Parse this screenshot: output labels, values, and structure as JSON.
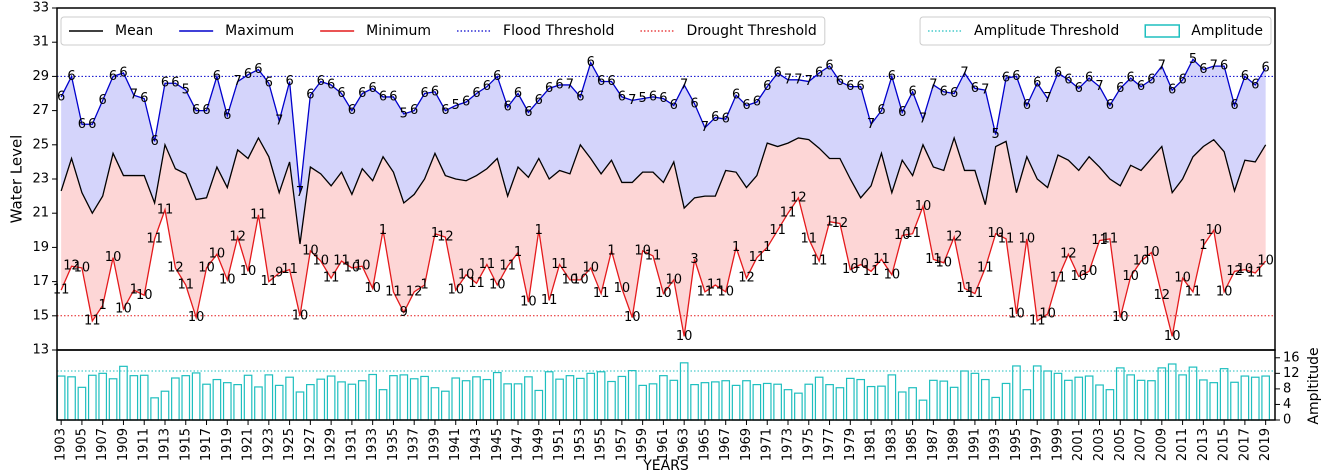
{
  "chart_data": [
    {
      "type": "line",
      "ylabel": "Water Level",
      "x": [
        1903,
        1904,
        1905,
        1906,
        1907,
        1908,
        1909,
        1910,
        1911,
        1912,
        1913,
        1914,
        1915,
        1916,
        1917,
        1918,
        1919,
        1920,
        1921,
        1922,
        1923,
        1924,
        1925,
        1926,
        1927,
        1928,
        1929,
        1930,
        1931,
        1932,
        1933,
        1934,
        1935,
        1936,
        1937,
        1938,
        1939,
        1940,
        1941,
        1942,
        1943,
        1944,
        1945,
        1946,
        1947,
        1948,
        1949,
        1950,
        1951,
        1952,
        1953,
        1954,
        1955,
        1956,
        1957,
        1958,
        1959,
        1960,
        1961,
        1962,
        1963,
        1964,
        1965,
        1966,
        1967,
        1968,
        1969,
        1970,
        1971,
        1972,
        1973,
        1974,
        1975,
        1976,
        1977,
        1978,
        1979,
        1980,
        1981,
        1982,
        1983,
        1984,
        1985,
        1986,
        1987,
        1988,
        1989,
        1990,
        1991,
        1992,
        1993,
        1994,
        1995,
        1996,
        1997,
        1998,
        1999,
        2000,
        2001,
        2002,
        2003,
        2004,
        2005,
        2006,
        2007,
        2008,
        2009,
        2010,
        2011,
        2012,
        2013,
        2014,
        2015,
        2016,
        2017,
        2018,
        2019
      ],
      "series": [
        {
          "name": "Mean",
          "color": "#000000",
          "values": [
            22.3,
            24.2,
            22.2,
            21.0,
            22.0,
            24.5,
            23.2,
            23.2,
            23.2,
            21.6,
            25.0,
            23.6,
            23.3,
            21.8,
            21.9,
            23.7,
            22.5,
            24.7,
            24.2,
            25.4,
            24.3,
            22.2,
            24.0,
            19.2,
            23.7,
            23.3,
            22.6,
            23.4,
            22.1,
            23.6,
            22.9,
            24.3,
            23.4,
            21.6,
            22.1,
            23.0,
            24.5,
            23.2,
            23.0,
            22.9,
            23.2,
            23.6,
            24.2,
            22.0,
            23.7,
            23.1,
            24.2,
            23.0,
            23.5,
            23.3,
            25.0,
            24.2,
            23.3,
            24.1,
            22.8,
            22.8,
            23.4,
            23.4,
            22.8,
            24.0,
            21.3,
            21.9,
            22.0,
            22.0,
            23.5,
            23.4,
            22.5,
            23.2,
            25.1,
            24.9,
            25.1,
            25.4,
            25.3,
            24.8,
            24.2,
            24.2,
            23.0,
            21.9,
            22.6,
            24.5,
            22.2,
            24.1,
            23.2,
            25.0,
            23.7,
            23.5,
            25.4,
            23.5,
            23.5,
            21.5,
            24.9,
            25.2,
            22.2,
            24.3,
            23.0,
            22.5,
            24.4,
            24.1,
            23.5,
            24.3,
            23.7,
            23.0,
            22.6,
            23.8,
            23.5,
            24.2,
            24.9,
            22.2,
            23.0,
            24.3,
            24.9,
            25.3,
            24.6,
            22.3,
            24.1,
            24.0,
            25.0
          ]
        },
        {
          "name": "Maximum",
          "color": "#0000cc",
          "fill": "#d4d4fb",
          "values": [
            27.8,
            29.0,
            26.2,
            26.2,
            27.6,
            29.0,
            29.2,
            27.9,
            27.7,
            25.2,
            28.6,
            28.6,
            28.2,
            27.0,
            27.0,
            29.0,
            26.7,
            28.7,
            29.1,
            29.4,
            28.6,
            26.4,
            28.7,
            22.2,
            27.9,
            28.7,
            28.5,
            28.0,
            27.0,
            28.0,
            28.3,
            27.8,
            27.8,
            26.8,
            27.0,
            28.0,
            28.1,
            27.0,
            27.3,
            27.5,
            28.0,
            28.4,
            29.0,
            27.2,
            28.0,
            26.9,
            27.6,
            28.3,
            28.5,
            28.5,
            27.8,
            29.8,
            28.7,
            28.7,
            27.8,
            27.6,
            27.7,
            27.8,
            27.7,
            27.3,
            28.5,
            27.4,
            26.0,
            26.6,
            26.5,
            27.9,
            27.3,
            27.5,
            28.4,
            29.2,
            28.8,
            28.8,
            28.7,
            29.2,
            29.6,
            28.7,
            28.4,
            28.4,
            26.2,
            27.0,
            29.0,
            26.9,
            28.1,
            26.5,
            28.5,
            28.1,
            28.0,
            29.2,
            28.3,
            28.2,
            25.6,
            28.9,
            29.0,
            27.3,
            28.6,
            27.7,
            29.2,
            28.8,
            28.3,
            28.9,
            28.4,
            27.3,
            28.3,
            28.9,
            28.4,
            28.8,
            29.6,
            28.2,
            28.8,
            30.0,
            29.4,
            29.6,
            29.6,
            27.3,
            29.0,
            28.5,
            29.5
          ],
          "point_labels": [
            "6",
            "6",
            "6",
            "6",
            "6",
            "6",
            "6",
            "7",
            "6",
            "6",
            "6",
            "6",
            "5",
            "6",
            "6",
            "6",
            "6",
            "7",
            "6",
            "6",
            "6",
            "7",
            "6",
            "7",
            "6",
            "6",
            "6",
            "6",
            "6",
            "6",
            "6",
            "6",
            "6",
            "5",
            "6",
            "6",
            "6",
            "6",
            "5",
            "6",
            "6",
            "6",
            "6",
            "6",
            "6",
            "6",
            "6",
            "6",
            "6",
            "7",
            "6",
            "6",
            "6",
            "6",
            "6",
            "7",
            "5",
            "6",
            "6",
            "6",
            "7",
            "6",
            "7",
            "6",
            "6",
            "6",
            "6",
            "6",
            "6",
            "6",
            "7",
            "7",
            "7",
            "6",
            "6",
            "6",
            "6",
            "6",
            "7",
            "6",
            "6",
            "6",
            "6",
            "7",
            "7",
            "6",
            "6",
            "7",
            "6",
            "7",
            "5",
            "6",
            "6",
            "6",
            "6",
            "7",
            "6",
            "6",
            "6",
            "6",
            "7",
            "6",
            "6",
            "6",
            "6",
            "6",
            "7",
            "6",
            "6",
            "5",
            "6",
            "7",
            "6",
            "6",
            "6",
            "6",
            "6"
          ]
        },
        {
          "name": "Minimum",
          "color": "#e41a1c",
          "fill": "#fdd6d6",
          "values": [
            16.5,
            17.9,
            17.8,
            14.7,
            15.6,
            18.4,
            15.4,
            16.5,
            16.2,
            19.5,
            21.2,
            17.8,
            16.8,
            14.9,
            17.8,
            18.6,
            17.1,
            19.6,
            17.6,
            20.9,
            17.0,
            17.5,
            17.7,
            15.0,
            18.8,
            18.2,
            17.2,
            18.2,
            17.8,
            17.9,
            16.6,
            20.0,
            16.4,
            15.2,
            16.4,
            16.8,
            19.8,
            19.6,
            16.5,
            17.4,
            16.9,
            18.0,
            16.8,
            17.9,
            18.7,
            15.8,
            20.0,
            15.9,
            18.0,
            17.1,
            17.1,
            17.8,
            16.3,
            18.8,
            16.6,
            14.9,
            18.8,
            18.5,
            16.3,
            17.1,
            13.8,
            18.3,
            16.4,
            16.8,
            16.4,
            19.0,
            17.2,
            18.4,
            19.0,
            20.0,
            21.0,
            21.9,
            19.5,
            18.2,
            20.5,
            20.4,
            17.7,
            18.0,
            17.6,
            18.3,
            17.4,
            19.7,
            19.8,
            21.4,
            18.3,
            18.1,
            19.6,
            16.6,
            16.3,
            17.8,
            19.8,
            19.5,
            15.1,
            19.5,
            14.7,
            15.1,
            17.2,
            18.6,
            17.3,
            17.6,
            19.4,
            19.5,
            14.9,
            17.3,
            18.2,
            18.7,
            16.2,
            13.8,
            17.2,
            16.4,
            19.1,
            20.0,
            16.4,
            17.6,
            17.7,
            17.5,
            18.2
          ],
          "point_labels": [
            "11",
            "12",
            "10",
            "11",
            "1",
            "10",
            "10",
            "1",
            "10",
            "11",
            "11",
            "12",
            "11",
            "10",
            "10",
            "10",
            "10",
            "12",
            "10",
            "11",
            "11",
            "9",
            "11",
            "10",
            "10",
            "10",
            "11",
            "11",
            "10",
            "10",
            "10",
            "1",
            "11",
            "9",
            "12",
            "1",
            "1",
            "12",
            "10",
            "10",
            "11",
            "11",
            "10",
            "11",
            "1",
            "10",
            "1",
            "11",
            "11",
            "10",
            "10",
            "10",
            "11",
            "1",
            "10",
            "10",
            "10",
            "11",
            "10",
            "10",
            "10",
            "3",
            "11",
            "11",
            "10",
            "1",
            "12",
            "11",
            "1",
            "11",
            "11",
            "12",
            "11",
            "11",
            "1",
            "12",
            "10",
            "10",
            "11",
            "11",
            "10",
            "10",
            "11",
            "10",
            "11",
            "10",
            "12",
            "11",
            "11",
            "11",
            "10",
            "11",
            "10",
            "10",
            "11",
            "10",
            "11",
            "12",
            "10",
            "10",
            "11",
            "11",
            "10",
            "10",
            "10",
            "10",
            "12",
            "10",
            "10",
            "11",
            "1",
            "10",
            "10",
            "12",
            "10",
            "11",
            "10"
          ]
        }
      ],
      "thresholds": [
        {
          "name": "Flood Threshold",
          "value": 29,
          "color": "#0000cc"
        },
        {
          "name": "Drought Threshold",
          "value": 15,
          "color": "#e41a1c"
        }
      ],
      "xlim": [
        1902.6,
        2019.9
      ],
      "ylim": [
        13,
        33
      ],
      "yticks": [
        13,
        15,
        17,
        19,
        21,
        23,
        25,
        27,
        29,
        31,
        33
      ],
      "legend": "upper left"
    },
    {
      "type": "bar",
      "xlabel": "YEARS",
      "ylabel": "Ampltitude",
      "x": [
        1903,
        1904,
        1905,
        1906,
        1907,
        1908,
        1909,
        1910,
        1911,
        1912,
        1913,
        1914,
        1915,
        1916,
        1917,
        1918,
        1919,
        1920,
        1921,
        1922,
        1923,
        1924,
        1925,
        1926,
        1927,
        1928,
        1929,
        1930,
        1931,
        1932,
        1933,
        1934,
        1935,
        1936,
        1937,
        1938,
        1939,
        1940,
        1941,
        1942,
        1943,
        1944,
        1945,
        1946,
        1947,
        1948,
        1949,
        1950,
        1951,
        1952,
        1953,
        1954,
        1955,
        1956,
        1957,
        1958,
        1959,
        1960,
        1961,
        1962,
        1963,
        1964,
        1965,
        1966,
        1967,
        1968,
        1969,
        1970,
        1971,
        1972,
        1973,
        1974,
        1975,
        1976,
        1977,
        1978,
        1979,
        1980,
        1981,
        1982,
        1983,
        1984,
        1985,
        1986,
        1987,
        1988,
        1989,
        1990,
        1991,
        1992,
        1993,
        1994,
        1995,
        1996,
        1997,
        1998,
        1999,
        2000,
        2001,
        2002,
        2003,
        2004,
        2005,
        2006,
        2007,
        2008,
        2009,
        2010,
        2011,
        2012,
        2013,
        2014,
        2015,
        2016,
        2017,
        2018,
        2019
      ],
      "series": [
        {
          "name": "Amplitude",
          "color": "#1fbfbf",
          "values": [
            11.3,
            11.1,
            8.4,
            11.5,
            12.0,
            10.6,
            13.8,
            11.4,
            11.5,
            5.7,
            7.4,
            10.8,
            11.4,
            12.1,
            9.2,
            10.4,
            9.6,
            9.1,
            11.5,
            8.5,
            11.6,
            8.9,
            11.0,
            7.2,
            9.1,
            10.5,
            11.3,
            9.8,
            9.2,
            10.1,
            11.7,
            7.8,
            11.4,
            11.6,
            10.6,
            11.2,
            8.3,
            7.4,
            10.8,
            10.1,
            11.1,
            10.4,
            12.2,
            9.3,
            9.3,
            11.1,
            7.6,
            12.4,
            10.5,
            11.4,
            10.7,
            12.0,
            12.4,
            9.9,
            11.2,
            12.7,
            8.9,
            9.3,
            11.4,
            10.2,
            14.7,
            9.1,
            9.6,
            9.8,
            10.1,
            8.9,
            10.1,
            9.1,
            9.4,
            9.2,
            7.8,
            6.9,
            9.2,
            11.0,
            9.1,
            8.3,
            10.7,
            10.4,
            8.6,
            8.7,
            11.6,
            7.2,
            8.3,
            5.1,
            10.2,
            10.0,
            8.4,
            12.6,
            12.0,
            10.4,
            5.8,
            9.4,
            13.9,
            7.8,
            13.9,
            12.6,
            12.0,
            10.2,
            11.0,
            11.3,
            9.0,
            7.8,
            13.4,
            11.6,
            10.2,
            10.1,
            13.4,
            14.4,
            11.6,
            13.6,
            10.3,
            9.6,
            13.2,
            9.7,
            11.3,
            11.0,
            11.3
          ]
        }
      ],
      "thresholds": [
        {
          "name": "Amplitude Threshold",
          "value": 12.6,
          "color": "#1fbfbf"
        }
      ],
      "xlim": [
        1902.6,
        2019.9
      ],
      "xticks": [
        1903,
        1905,
        1907,
        1909,
        1911,
        1913,
        1915,
        1917,
        1919,
        1921,
        1923,
        1925,
        1927,
        1929,
        1931,
        1933,
        1935,
        1937,
        1939,
        1941,
        1943,
        1945,
        1947,
        1949,
        1951,
        1953,
        1955,
        1957,
        1959,
        1961,
        1963,
        1965,
        1967,
        1969,
        1971,
        1973,
        1975,
        1977,
        1979,
        1981,
        1983,
        1985,
        1987,
        1989,
        1991,
        1993,
        1995,
        1997,
        1999,
        2001,
        2003,
        2005,
        2007,
        2009,
        2011,
        2013,
        2015,
        2017,
        2019
      ],
      "ylim": [
        0,
        18
      ],
      "yticks": [
        0,
        4,
        8,
        12,
        16
      ],
      "legend": "upper right"
    }
  ]
}
